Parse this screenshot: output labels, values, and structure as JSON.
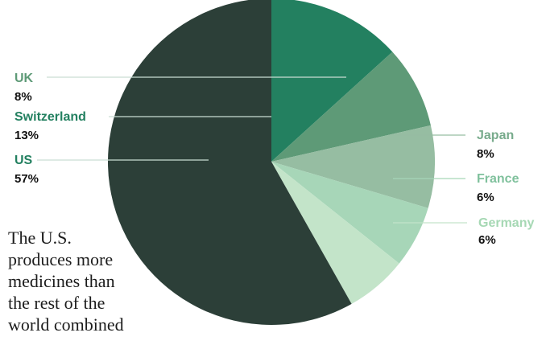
{
  "caption_lines": [
    "The U.S.",
    "produces more",
    "medicines than",
    "the rest of the",
    "world combined"
  ],
  "chart_data": {
    "type": "pie",
    "title": "",
    "unit": "%",
    "start_at": "12 o'clock, clockwise",
    "slices": [
      {
        "label": "Switzerland",
        "value": 13,
        "value_label": "13%",
        "color": "#238060",
        "label_color": "#238060",
        "label_side": "left"
      },
      {
        "label": "UK",
        "value": 8,
        "value_label": "8%",
        "color": "#5e9a77",
        "label_color": "#5e9a77",
        "label_side": "left"
      },
      {
        "label": "Japan",
        "value": 8,
        "value_label": "8%",
        "color": "#96bda2",
        "label_color": "#78ab8c",
        "label_side": "right"
      },
      {
        "label": "France",
        "value": 6,
        "value_label": "6%",
        "color": "#a7d6b8",
        "label_color": "#80c19d",
        "label_side": "right"
      },
      {
        "label": "Germany",
        "value": 6,
        "value_label": "6%",
        "color": "#c3e4c9",
        "label_color": "#a6d8b4",
        "label_side": "right"
      },
      {
        "label": "US",
        "value": 57,
        "value_label": "57%",
        "color": "#2c3f38",
        "label_color": "#238060",
        "label_side": "left"
      }
    ]
  }
}
